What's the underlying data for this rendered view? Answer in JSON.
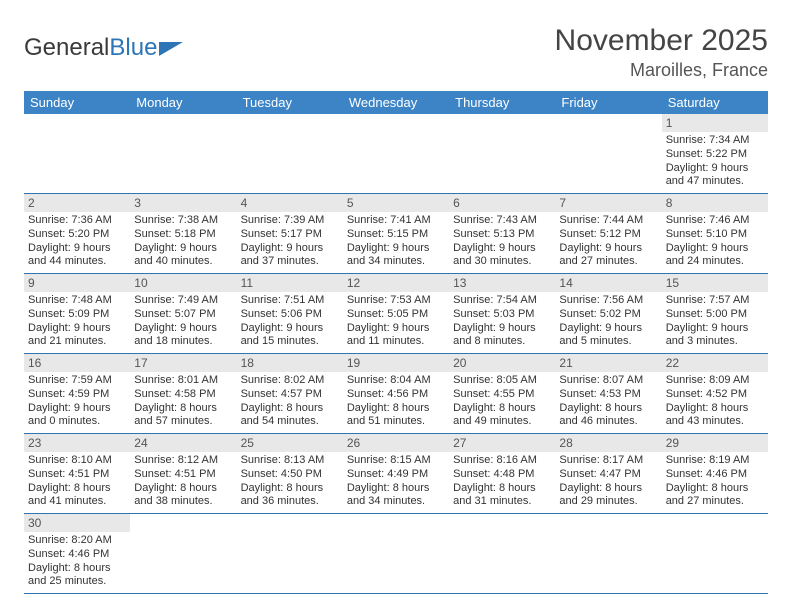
{
  "brand": {
    "word1": "General",
    "word2": "Blue"
  },
  "title": "November 2025",
  "location": "Maroilles, France",
  "colors": {
    "header_bg": "#3d84c6",
    "row_border": "#2e75b6",
    "daynum_bg": "#e8e8e8"
  },
  "weekdays": [
    "Sunday",
    "Monday",
    "Tuesday",
    "Wednesday",
    "Thursday",
    "Friday",
    "Saturday"
  ],
  "first_day_index": 6,
  "days": [
    {
      "n": 1,
      "sunrise": "7:34 AM",
      "sunset": "5:22 PM",
      "daylight": "9 hours and 47 minutes."
    },
    {
      "n": 2,
      "sunrise": "7:36 AM",
      "sunset": "5:20 PM",
      "daylight": "9 hours and 44 minutes."
    },
    {
      "n": 3,
      "sunrise": "7:38 AM",
      "sunset": "5:18 PM",
      "daylight": "9 hours and 40 minutes."
    },
    {
      "n": 4,
      "sunrise": "7:39 AM",
      "sunset": "5:17 PM",
      "daylight": "9 hours and 37 minutes."
    },
    {
      "n": 5,
      "sunrise": "7:41 AM",
      "sunset": "5:15 PM",
      "daylight": "9 hours and 34 minutes."
    },
    {
      "n": 6,
      "sunrise": "7:43 AM",
      "sunset": "5:13 PM",
      "daylight": "9 hours and 30 minutes."
    },
    {
      "n": 7,
      "sunrise": "7:44 AM",
      "sunset": "5:12 PM",
      "daylight": "9 hours and 27 minutes."
    },
    {
      "n": 8,
      "sunrise": "7:46 AM",
      "sunset": "5:10 PM",
      "daylight": "9 hours and 24 minutes."
    },
    {
      "n": 9,
      "sunrise": "7:48 AM",
      "sunset": "5:09 PM",
      "daylight": "9 hours and 21 minutes."
    },
    {
      "n": 10,
      "sunrise": "7:49 AM",
      "sunset": "5:07 PM",
      "daylight": "9 hours and 18 minutes."
    },
    {
      "n": 11,
      "sunrise": "7:51 AM",
      "sunset": "5:06 PM",
      "daylight": "9 hours and 15 minutes."
    },
    {
      "n": 12,
      "sunrise": "7:53 AM",
      "sunset": "5:05 PM",
      "daylight": "9 hours and 11 minutes."
    },
    {
      "n": 13,
      "sunrise": "7:54 AM",
      "sunset": "5:03 PM",
      "daylight": "9 hours and 8 minutes."
    },
    {
      "n": 14,
      "sunrise": "7:56 AM",
      "sunset": "5:02 PM",
      "daylight": "9 hours and 5 minutes."
    },
    {
      "n": 15,
      "sunrise": "7:57 AM",
      "sunset": "5:00 PM",
      "daylight": "9 hours and 3 minutes."
    },
    {
      "n": 16,
      "sunrise": "7:59 AM",
      "sunset": "4:59 PM",
      "daylight": "9 hours and 0 minutes."
    },
    {
      "n": 17,
      "sunrise": "8:01 AM",
      "sunset": "4:58 PM",
      "daylight": "8 hours and 57 minutes."
    },
    {
      "n": 18,
      "sunrise": "8:02 AM",
      "sunset": "4:57 PM",
      "daylight": "8 hours and 54 minutes."
    },
    {
      "n": 19,
      "sunrise": "8:04 AM",
      "sunset": "4:56 PM",
      "daylight": "8 hours and 51 minutes."
    },
    {
      "n": 20,
      "sunrise": "8:05 AM",
      "sunset": "4:55 PM",
      "daylight": "8 hours and 49 minutes."
    },
    {
      "n": 21,
      "sunrise": "8:07 AM",
      "sunset": "4:53 PM",
      "daylight": "8 hours and 46 minutes."
    },
    {
      "n": 22,
      "sunrise": "8:09 AM",
      "sunset": "4:52 PM",
      "daylight": "8 hours and 43 minutes."
    },
    {
      "n": 23,
      "sunrise": "8:10 AM",
      "sunset": "4:51 PM",
      "daylight": "8 hours and 41 minutes."
    },
    {
      "n": 24,
      "sunrise": "8:12 AM",
      "sunset": "4:51 PM",
      "daylight": "8 hours and 38 minutes."
    },
    {
      "n": 25,
      "sunrise": "8:13 AM",
      "sunset": "4:50 PM",
      "daylight": "8 hours and 36 minutes."
    },
    {
      "n": 26,
      "sunrise": "8:15 AM",
      "sunset": "4:49 PM",
      "daylight": "8 hours and 34 minutes."
    },
    {
      "n": 27,
      "sunrise": "8:16 AM",
      "sunset": "4:48 PM",
      "daylight": "8 hours and 31 minutes."
    },
    {
      "n": 28,
      "sunrise": "8:17 AM",
      "sunset": "4:47 PM",
      "daylight": "8 hours and 29 minutes."
    },
    {
      "n": 29,
      "sunrise": "8:19 AM",
      "sunset": "4:46 PM",
      "daylight": "8 hours and 27 minutes."
    },
    {
      "n": 30,
      "sunrise": "8:20 AM",
      "sunset": "4:46 PM",
      "daylight": "8 hours and 25 minutes."
    }
  ],
  "labels": {
    "sunrise": "Sunrise:",
    "sunset": "Sunset:",
    "daylight": "Daylight:"
  }
}
